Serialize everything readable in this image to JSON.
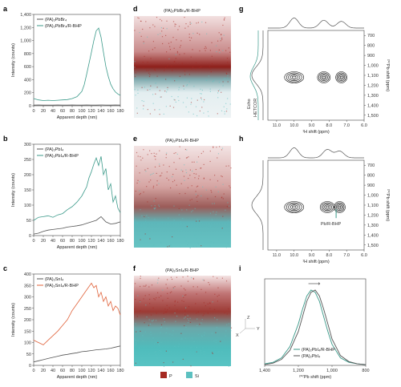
{
  "colors": {
    "teal": "#3b9a8a",
    "orange": "#e0623a",
    "gray": "#555555",
    "p": "#a52a22",
    "si": "#5cc0c0"
  },
  "panels": {
    "a": {
      "label": "a",
      "ylabel": "Intensity (counts)",
      "xlabel": "Apparent depth (nm)",
      "legend": [
        "(PA)₂PbBr₄",
        "(PA)₂PbBr₄/R-BHP"
      ],
      "xticks": [
        "0",
        "20",
        "40",
        "60",
        "80",
        "100",
        "120",
        "140",
        "160",
        "180"
      ],
      "yticks": [
        "0",
        "200",
        "400",
        "600",
        "800",
        "1,000",
        "1,200",
        "1,400"
      ]
    },
    "b": {
      "label": "b",
      "ylabel": "Intensity (counts)",
      "xlabel": "Apparent depth (nm)",
      "legend": [
        "(PA)₂PbI₄",
        "(PA)₂PbI₄/R-BHP"
      ],
      "xticks": [
        "0",
        "20",
        "40",
        "60",
        "80",
        "100",
        "120",
        "140",
        "160",
        "180"
      ],
      "yticks": [
        "0",
        "50",
        "100",
        "150",
        "200",
        "250",
        "300"
      ]
    },
    "c": {
      "label": "c",
      "ylabel": "Intensity (counts)",
      "xlabel": "Apparent depth (nm)",
      "legend": [
        "(PA)₂SnI₄",
        "(PA)₂SnI₄/R-BHP"
      ],
      "xticks": [
        "0",
        "20",
        "40",
        "60",
        "80",
        "100",
        "120",
        "140",
        "160",
        "180"
      ],
      "yticks": [
        "0",
        "50",
        "100",
        "150",
        "200",
        "250",
        "300",
        "350",
        "400"
      ]
    },
    "d": {
      "label": "d",
      "title": "(PA)₂PbBr₄/R-BHP"
    },
    "e": {
      "label": "e",
      "title": "(PA)₂PbI₄/R-BHP"
    },
    "f": {
      "label": "f",
      "title": "(PA)₂SnI₄/R-BHP",
      "legend_p": "P",
      "legend_si": "Si"
    },
    "g": {
      "label": "g",
      "ylabel": "²⁰⁷Pb shift (ppm)",
      "xlabel": "¹H shift (ppm)",
      "side_labels": [
        "Echo",
        "HETCOR"
      ],
      "xticks": [
        "11.0",
        "10.0",
        "9.0",
        "8.0",
        "7.0",
        "6.0"
      ],
      "yticks": [
        "700",
        "800",
        "900",
        "1,000",
        "1,100",
        "1,200",
        "1,300",
        "1,400",
        "1,500"
      ]
    },
    "h": {
      "label": "h",
      "ylabel": "²⁰⁷Pb shift (ppm)",
      "xlabel": "¹H shift (ppm)",
      "annotation": "Pb/R-BHP",
      "xticks": [
        "11.0",
        "10.0",
        "9.0",
        "8.0",
        "7.0",
        "6.0"
      ],
      "yticks": [
        "700",
        "800",
        "900",
        "1,000",
        "1,100",
        "1,200",
        "1,300",
        "1,400",
        "1,500"
      ]
    },
    "i": {
      "label": "i",
      "xlabel": "²⁰⁷Pb shift (ppm)",
      "legend": [
        "(PA)₂PbI₄/R-BHP",
        "(PA)₂PbI₄"
      ],
      "xticks": [
        "1,400",
        "1,200",
        "1,000",
        "800"
      ],
      "axes3d": [
        "Z",
        "X",
        "Y"
      ]
    }
  },
  "chart_data": [
    {
      "type": "line",
      "panel": "a",
      "xlim": [
        0,
        180
      ],
      "ylim": [
        0,
        1400
      ],
      "series": [
        {
          "name": "(PA)₂PbBr₄",
          "color": "#555555",
          "x": [
            0,
            10,
            20,
            30,
            40,
            50,
            60,
            70,
            80,
            90,
            100,
            110,
            120,
            130,
            140,
            150,
            160,
            170,
            180
          ],
          "y": [
            10,
            12,
            10,
            11,
            10,
            12,
            11,
            10,
            12,
            11,
            10,
            12,
            11,
            10,
            12,
            11,
            10,
            12,
            11
          ]
        },
        {
          "name": "(PA)₂PbBr₄/R-BHP",
          "color": "#3b9a8a",
          "x": [
            0,
            10,
            20,
            30,
            40,
            50,
            60,
            70,
            80,
            90,
            100,
            105,
            110,
            115,
            120,
            125,
            130,
            135,
            140,
            145,
            150,
            155,
            160,
            165,
            170,
            175,
            180
          ],
          "y": [
            110,
            90,
            80,
            85,
            80,
            85,
            90,
            95,
            110,
            140,
            220,
            320,
            480,
            650,
            820,
            1000,
            1150,
            1190,
            1050,
            820,
            600,
            450,
            330,
            260,
            210,
            180,
            160
          ]
        }
      ]
    },
    {
      "type": "line",
      "panel": "b",
      "xlim": [
        0,
        180
      ],
      "ylim": [
        0,
        300
      ],
      "series": [
        {
          "name": "(PA)₂PbI₄",
          "color": "#555555",
          "x": [
            0,
            10,
            20,
            30,
            40,
            50,
            60,
            70,
            80,
            90,
            100,
            110,
            120,
            130,
            140,
            150,
            160,
            170,
            180
          ],
          "y": [
            5,
            8,
            14,
            18,
            20,
            22,
            24,
            28,
            30,
            32,
            35,
            40,
            45,
            50,
            62,
            45,
            38,
            40,
            45
          ]
        },
        {
          "name": "(PA)₂PbI₄/R-BHP",
          "color": "#3b9a8a",
          "x": [
            0,
            10,
            20,
            30,
            40,
            50,
            60,
            70,
            80,
            90,
            100,
            110,
            115,
            120,
            125,
            130,
            135,
            140,
            145,
            150,
            155,
            160,
            165,
            170,
            175,
            180
          ],
          "y": [
            50,
            60,
            62,
            65,
            60,
            68,
            72,
            85,
            95,
            110,
            130,
            160,
            190,
            210,
            235,
            255,
            230,
            260,
            200,
            220,
            150,
            170,
            110,
            130,
            90,
            75
          ]
        }
      ]
    },
    {
      "type": "line",
      "panel": "c",
      "xlim": [
        0,
        180
      ],
      "ylim": [
        0,
        400
      ],
      "series": [
        {
          "name": "(PA)₂SnI₄",
          "color": "#555555",
          "x": [
            0,
            10,
            20,
            30,
            40,
            50,
            60,
            70,
            80,
            90,
            100,
            110,
            120,
            130,
            140,
            150,
            160,
            170,
            180
          ],
          "y": [
            15,
            20,
            25,
            30,
            35,
            40,
            45,
            48,
            52,
            55,
            60,
            62,
            65,
            68,
            70,
            72,
            75,
            80,
            85
          ]
        },
        {
          "name": "(PA)₂SnI₄/R-BHP",
          "color": "#e0623a",
          "x": [
            0,
            10,
            20,
            30,
            40,
            50,
            60,
            70,
            80,
            90,
            100,
            110,
            120,
            125,
            130,
            135,
            140,
            145,
            150,
            155,
            160,
            165,
            170,
            175,
            180
          ],
          "y": [
            110,
            100,
            90,
            110,
            130,
            150,
            175,
            200,
            240,
            270,
            300,
            330,
            360,
            340,
            350,
            300,
            320,
            280,
            300,
            260,
            280,
            240,
            260,
            250,
            220
          ]
        }
      ]
    },
    {
      "type": "line",
      "panel": "i",
      "xlim": [
        1400,
        800
      ],
      "ylim": [
        0,
        1
      ],
      "series": [
        {
          "name": "(PA)₂PbI₄/R-BHP",
          "color": "#3b9a8a",
          "x": [
            1400,
            1350,
            1300,
            1250,
            1200,
            1175,
            1150,
            1125,
            1100,
            1075,
            1050,
            1025,
            1000,
            950,
            900,
            850,
            800
          ],
          "y": [
            0.02,
            0.04,
            0.1,
            0.25,
            0.55,
            0.75,
            0.92,
            1.0,
            0.97,
            0.85,
            0.65,
            0.45,
            0.28,
            0.1,
            0.04,
            0.02,
            0.01
          ]
        },
        {
          "name": "(PA)₂PbI₄",
          "color": "#555555",
          "x": [
            1400,
            1350,
            1300,
            1250,
            1200,
            1175,
            1150,
            1125,
            1100,
            1075,
            1050,
            1025,
            1000,
            950,
            900,
            850,
            800
          ],
          "y": [
            0.01,
            0.03,
            0.08,
            0.2,
            0.45,
            0.65,
            0.85,
            0.97,
            1.0,
            0.92,
            0.75,
            0.55,
            0.35,
            0.13,
            0.05,
            0.02,
            0.01
          ]
        }
      ]
    }
  ]
}
